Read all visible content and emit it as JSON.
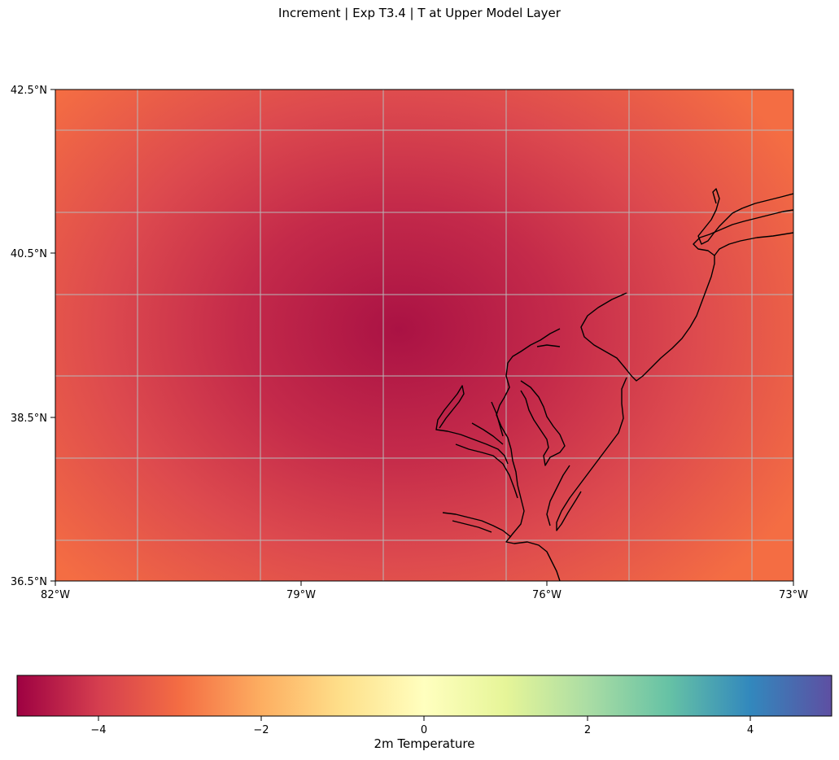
{
  "title": "Increment | Exp T3.4 | T at Upper Model Layer",
  "map": {
    "lat_ticks": [
      "42.5°N",
      "40.5°N",
      "38.5°N",
      "36.5°N"
    ],
    "lon_ticks": [
      "82°W",
      "79°W",
      "76°W",
      "73°W"
    ],
    "extent": {
      "lon_min": -82,
      "lon_max": -73,
      "lat_min": 36.5,
      "lat_max": 42.5
    },
    "field_min_value": -4.8,
    "field_edge_value": -3.0,
    "field_center": {
      "lon": -77.5,
      "lat": 39.6
    },
    "gridlines": true,
    "coastlines": true
  },
  "colorbar": {
    "label": "2m Temperature",
    "ticks": [
      "−4",
      "−2",
      "0",
      "2",
      "4"
    ],
    "range": [
      -5,
      5
    ],
    "colormap": "Spectral",
    "colors": [
      "#9e0142",
      "#d53e4f",
      "#f46d43",
      "#fdae61",
      "#fee08b",
      "#ffffbf",
      "#e6f598",
      "#abdda4",
      "#66c2a5",
      "#3288bd",
      "#5e4fa2"
    ]
  }
}
